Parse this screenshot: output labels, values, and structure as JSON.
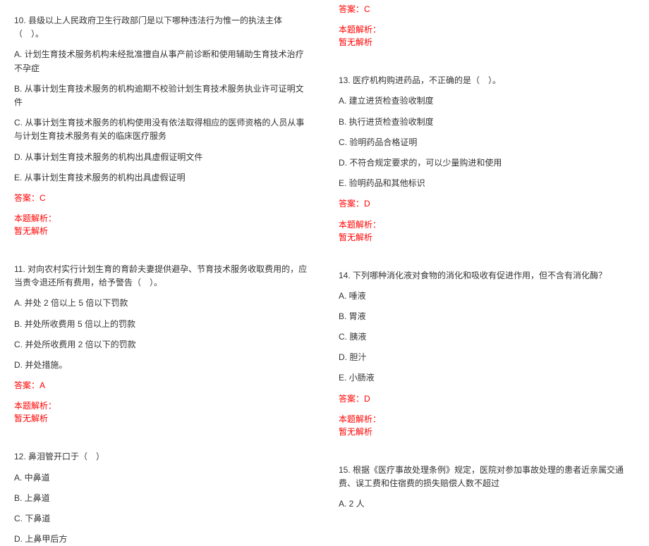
{
  "q10": {
    "stem": "10. 县级以上人民政府卫生行政部门是以下哪种违法行为惟一的执法主体（　）。",
    "A": "A. 计划生育技术服务机构未经批准擅自从事产前诊断和使用辅助生育技术治疗不孕症",
    "B": "B. 从事计划生育技术服务的机构逾期不校验计划生育技术服务执业许可证明文件",
    "C": "C. 从事计划生育技术服务的机构使用没有依法取得相应的医师资格的人员从事与计划生育技术服务有关的临床医疗服务",
    "D": "D. 从事计划生育技术服务的机构出具虚假证明文件",
    "E": "E. 从事计划生育技术服务的机构出具虚假证明",
    "ans": "答案：C",
    "exp_label": "本题解析：",
    "exp_text": "暂无解析"
  },
  "q11": {
    "stem": "11. 对向农村实行计划生育的育龄夫妻提供避孕、节育技术服务收取费用的，应当责令退还所有费用，给予警告（　）。",
    "A": "A. 并处 2 倍以上 5 倍以下罚款",
    "B": "B. 并处所收费用 5 倍以上的罚款",
    "C": "C. 并处所收费用 2 倍以下的罚款",
    "D": "D. 并处措施。",
    "ans": "答案：A",
    "exp_label": "本题解析：",
    "exp_text": "暂无解析"
  },
  "q12": {
    "stem": "12. 鼻泪管开口于（　）",
    "A": "A. 中鼻道",
    "B": "B. 上鼻道",
    "C": "C. 下鼻道",
    "D": "D. 上鼻甲后方"
  },
  "q12r": {
    "ans": "答案：C",
    "exp_label": "本题解析：",
    "exp_text": "暂无解析"
  },
  "q13": {
    "stem": "13. 医疗机构购进药品，不正确的是（　）。",
    "A": "A. 建立进货检查验收制度",
    "B": "B. 执行进货检查验收制度",
    "C": "C. 验明药品合格证明",
    "D": "D. 不符合规定要求的，可以少量购进和使用",
    "E": "E. 验明药品和其他标识",
    "ans": "答案：D",
    "exp_label": "本题解析：",
    "exp_text": "暂无解析"
  },
  "q14": {
    "stem": "14. 下列哪种消化液对食物的消化和吸收有促进作用，但不含有消化酶？",
    "A": "A. 唾液",
    "B": "B. 胃液",
    "C": "C. 胰液",
    "D": "D. 胆汁",
    "E": "E. 小肠液",
    "ans": "答案：D",
    "exp_label": "本题解析：",
    "exp_text": "暂无解析"
  },
  "q15": {
    "stem": "15. 根据《医疗事故处理条例》规定，医院对参加事故处理的患者近亲属交通费、误工费和住宿费的损失赔偿人数不超过",
    "A": "A. 2 人"
  }
}
